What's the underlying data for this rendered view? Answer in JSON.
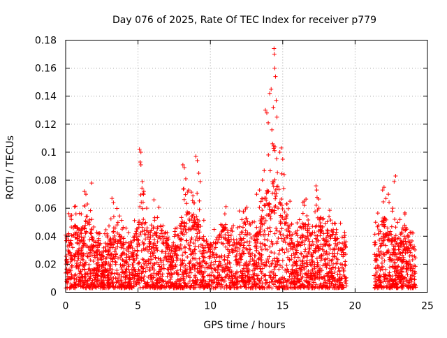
{
  "chart_data": {
    "type": "scatter",
    "title": "Day 076 of 2025, Rate Of TEC Index for receiver p779",
    "xlabel": "GPS time / hours",
    "ylabel": "ROTI / TECUs",
    "xlim": [
      0,
      25
    ],
    "ylim": [
      0,
      0.18
    ],
    "xticks": [
      0,
      5,
      10,
      15,
      20,
      25
    ],
    "xtick_labels": [
      "0",
      "5",
      "10",
      "15",
      "20",
      "25"
    ],
    "yticks": [
      0,
      0.02,
      0.04,
      0.06,
      0.08,
      0.1,
      0.12,
      0.14,
      0.16,
      0.18
    ],
    "ytick_labels": [
      "0",
      "0.02",
      "0.04",
      "0.06",
      "0.08",
      "0.1",
      "0.12",
      "0.14",
      "0.16",
      "0.18"
    ],
    "grid": true,
    "marker": "+",
    "color": "#ff0000",
    "data_gap_hours": [
      19.4,
      21.3
    ],
    "series": [
      {
        "name": "ROTI",
        "points": [
          [
            0.3,
            0.054
          ],
          [
            0.4,
            0.052
          ],
          [
            1.3,
            0.072
          ],
          [
            1.4,
            0.07
          ],
          [
            1.5,
            0.063
          ],
          [
            1.8,
            0.078
          ],
          [
            3.2,
            0.067
          ],
          [
            3.3,
            0.064
          ],
          [
            5.1,
            0.102
          ],
          [
            5.2,
            0.1
          ],
          [
            5.15,
            0.093
          ],
          [
            5.2,
            0.091
          ],
          [
            5.3,
            0.079
          ],
          [
            5.4,
            0.072
          ],
          [
            5.6,
            0.06
          ],
          [
            6.1,
            0.066
          ],
          [
            8.1,
            0.091
          ],
          [
            8.2,
            0.089
          ],
          [
            8.3,
            0.081
          ],
          [
            8.5,
            0.073
          ],
          [
            9.0,
            0.097
          ],
          [
            9.1,
            0.094
          ],
          [
            9.2,
            0.085
          ],
          [
            9.3,
            0.079
          ],
          [
            11.0,
            0.056
          ],
          [
            12.0,
            0.058
          ],
          [
            13.2,
            0.07
          ],
          [
            13.4,
            0.073
          ],
          [
            13.6,
            0.08
          ],
          [
            13.8,
            0.13
          ],
          [
            13.9,
            0.128
          ],
          [
            14.0,
            0.121
          ],
          [
            14.1,
            0.142
          ],
          [
            14.2,
            0.145
          ],
          [
            14.25,
            0.116
          ],
          [
            14.3,
            0.106
          ],
          [
            14.35,
            0.132
          ],
          [
            14.4,
            0.174
          ],
          [
            14.42,
            0.17
          ],
          [
            14.45,
            0.16
          ],
          [
            14.5,
            0.154
          ],
          [
            14.55,
            0.137
          ],
          [
            14.6,
            0.125
          ],
          [
            14.8,
            0.1
          ],
          [
            14.9,
            0.103
          ],
          [
            15.0,
            0.095
          ],
          [
            15.1,
            0.084
          ],
          [
            15.5,
            0.065
          ],
          [
            16.4,
            0.064
          ],
          [
            16.5,
            0.062
          ],
          [
            17.3,
            0.076
          ],
          [
            17.35,
            0.073
          ],
          [
            17.5,
            0.06
          ],
          [
            18.2,
            0.054
          ],
          [
            21.9,
            0.073
          ],
          [
            22.0,
            0.075
          ],
          [
            22.3,
            0.07
          ],
          [
            22.6,
            0.06
          ],
          [
            22.7,
            0.079
          ],
          [
            22.8,
            0.083
          ],
          [
            23.1,
            0.052
          ],
          [
            23.3,
            0.046
          ]
        ]
      }
    ]
  }
}
